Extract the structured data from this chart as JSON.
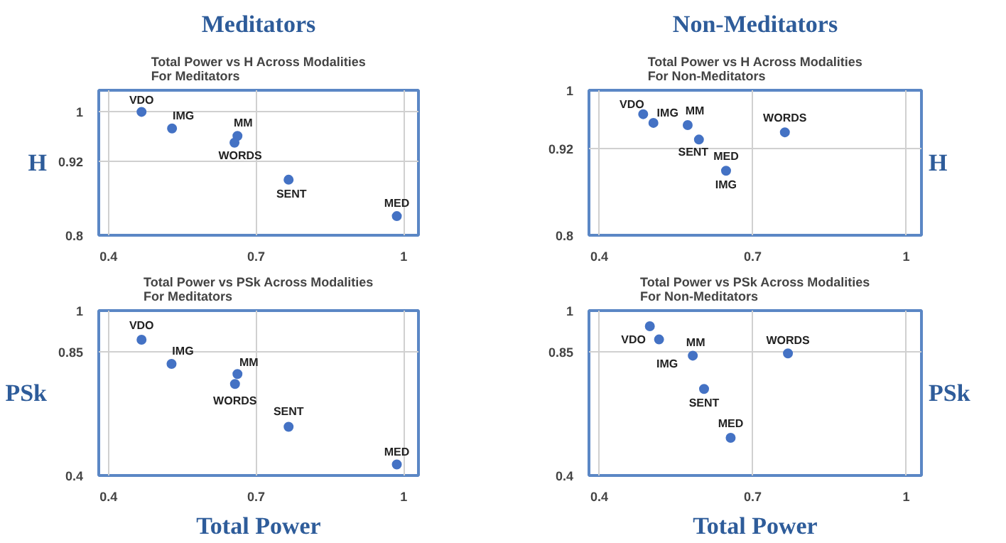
{
  "chart_data": [
    {
      "type": "scatter",
      "title": "Total Power vs H Across Modalities\nFor Meditators",
      "ylabel": "H",
      "annotations": [
        "Meditators",
        {
          "text": "VDO",
          "x": 0.467,
          "y": 1.0
        },
        {
          "text": "IMG",
          "x": 0.529,
          "y": 0.973
        },
        {
          "text": "MM",
          "x": 0.662,
          "y": 0.961
        },
        {
          "text": "WORDS",
          "x": 0.656,
          "y": 0.95
        },
        {
          "text": "SENT",
          "x": 0.766,
          "y": 0.89
        },
        {
          "text": "MED",
          "x": 0.986,
          "y": 0.831
        }
      ],
      "x": [
        0.467,
        0.529,
        0.662,
        0.656,
        0.766,
        0.986
      ],
      "values": [
        1.0,
        0.973,
        0.961,
        0.95,
        0.89,
        0.831
      ],
      "color": "#4472c4",
      "marker": "circle",
      "xlim": [
        0.38,
        1.03
      ],
      "ylim": [
        0.8,
        1.035
      ],
      "xticks": [
        0.4,
        0.7,
        1
      ],
      "yticks": [
        0.8,
        0.92,
        1
      ],
      "grid": true
    },
    {
      "type": "scatter",
      "title": "Total Power vs H Across Modalities\nFor Non-Meditators",
      "ylabel": "H",
      "annotations": [
        "Non-Meditators",
        {
          "text": "VDO",
          "x": 0.486,
          "y": 0.967
        },
        {
          "text": "IMG",
          "x": 0.506,
          "y": 0.955
        },
        {
          "text": "MM",
          "x": 0.573,
          "y": 0.952
        },
        {
          "text": "SENT",
          "x": 0.595,
          "y": 0.932
        },
        {
          "text": "MED",
          "x": 0.648,
          "y": 0.889
        },
        {
          "text": "IMG",
          "x": 0.648,
          "y": 0.889
        },
        {
          "text": "WORDS",
          "x": 0.763,
          "y": 0.942
        }
      ],
      "x": [
        0.486,
        0.506,
        0.573,
        0.595,
        0.648,
        0.763
      ],
      "values": [
        0.967,
        0.955,
        0.952,
        0.932,
        0.889,
        0.942
      ],
      "color": "#4472c4",
      "marker": "circle",
      "xlim": [
        0.38,
        1.03
      ],
      "ylim": [
        0.8,
        1.0
      ],
      "xticks": [
        0.4,
        0.7,
        1
      ],
      "yticks": [
        0.8,
        0.92,
        1
      ],
      "grid": true
    },
    {
      "type": "scatter",
      "title": "Total Power vs PSk Across Modalities\nFor Meditators",
      "ylabel": "PSk",
      "xlabel": "Total Power",
      "annotations": [
        {
          "text": "VDO",
          "x": 0.467,
          "y": 0.894
        },
        {
          "text": "IMG",
          "x": 0.528,
          "y": 0.806
        },
        {
          "text": "MM",
          "x": 0.662,
          "y": 0.769
        },
        {
          "text": "WORDS",
          "x": 0.657,
          "y": 0.733
        },
        {
          "text": "SENT",
          "x": 0.766,
          "y": 0.577
        },
        {
          "text": "MED",
          "x": 0.986,
          "y": 0.44
        }
      ],
      "x": [
        0.467,
        0.528,
        0.662,
        0.657,
        0.766,
        0.986
      ],
      "values": [
        0.894,
        0.806,
        0.769,
        0.733,
        0.577,
        0.44
      ],
      "color": "#4472c4",
      "marker": "circle",
      "xlim": [
        0.38,
        1.03
      ],
      "ylim": [
        0.4,
        1.0
      ],
      "xticks": [
        0.4,
        0.7,
        1
      ],
      "yticks": [
        0.4,
        0.85,
        1
      ],
      "grid": true
    },
    {
      "type": "scatter",
      "title": "Total Power vs PSk Across Modalities\nFor Non-Meditators",
      "ylabel": "PSk",
      "xlabel": "Total Power",
      "annotations": [
        {
          "text": "VDO",
          "x": 0.517,
          "y": 0.895
        },
        {
          "text": "IMG",
          "x": 0.583,
          "y": 0.836
        },
        {
          "text": "MM",
          "x": 0.583,
          "y": 0.836
        },
        {
          "text": "WORDS",
          "x": 0.769,
          "y": 0.844
        },
        {
          "text": "SENT",
          "x": 0.605,
          "y": 0.715
        },
        {
          "text": "MED",
          "x": 0.657,
          "y": 0.537
        }
      ],
      "x": [
        0.499,
        0.517,
        0.583,
        0.605,
        0.657,
        0.769
      ],
      "values": [
        0.943,
        0.895,
        0.836,
        0.715,
        0.537,
        0.844
      ],
      "color": "#4472c4",
      "marker": "circle",
      "xlim": [
        0.38,
        1.03
      ],
      "ylim": [
        0.4,
        1.0
      ],
      "xticks": [
        0.4,
        0.7,
        1
      ],
      "yticks": [
        0.4,
        0.85,
        1
      ],
      "grid": true
    }
  ]
}
